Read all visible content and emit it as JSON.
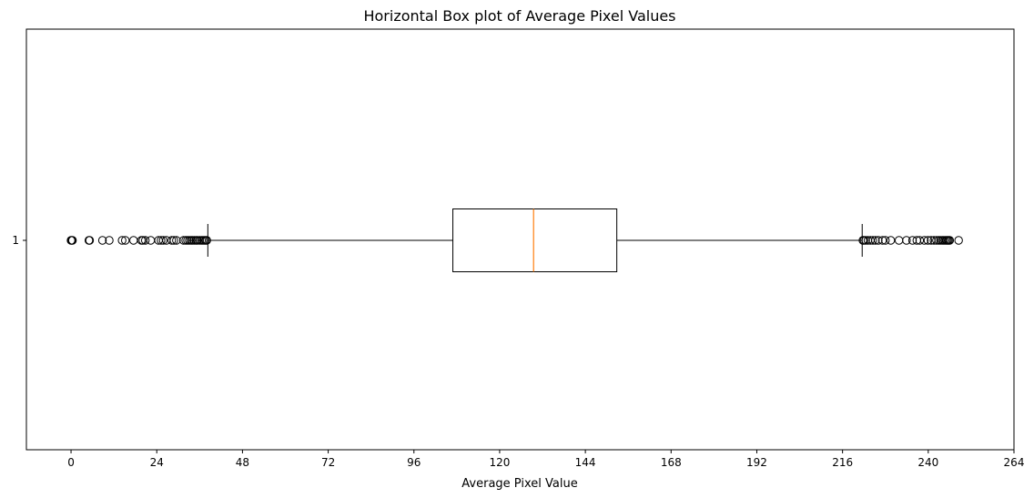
{
  "chart_data": {
    "type": "boxplot",
    "orientation": "horizontal",
    "title": "Horizontal Box plot of Average Pixel Values",
    "xlabel": "Average Pixel Value",
    "ylabel": "",
    "xlim": [
      -12.5,
      264
    ],
    "xticks": [
      0,
      24,
      48,
      72,
      96,
      120,
      144,
      168,
      192,
      216,
      240,
      264
    ],
    "ytick_labels": [
      "1"
    ],
    "grid": false,
    "colors": {
      "box": "#000000",
      "median": "#ff7f0e",
      "flier": "#000000",
      "background": "#ffffff"
    },
    "boxes": [
      {
        "label": "1",
        "whisker_low": 38.3,
        "q1": 106.9,
        "median": 129.5,
        "q3": 152.8,
        "whisker_high": 221.5,
        "fliers": [
          0.0,
          0.2,
          0.4,
          5.0,
          5.2,
          8.8,
          10.7,
          14.3,
          15.2,
          17.5,
          19.7,
          20.1,
          20.8,
          22.3,
          24.5,
          25.2,
          25.8,
          26.7,
          28.2,
          28.8,
          29.5,
          31.5,
          32.1,
          32.6,
          33.1,
          33.6,
          34.0,
          34.5,
          35.0,
          35.4,
          36.0,
          36.5,
          36.9,
          37.3,
          37.7,
          38.0,
          221.7,
          222.0,
          222.5,
          223.1,
          223.8,
          224.5,
          225.2,
          226.0,
          227.2,
          228.0,
          229.5,
          231.8,
          233.9,
          235.6,
          236.8,
          237.6,
          238.9,
          239.9,
          240.8,
          241.6,
          242.3,
          242.9,
          243.4,
          243.9,
          244.3,
          244.7,
          245.1,
          245.4,
          245.7,
          246.0,
          248.5
        ]
      }
    ]
  }
}
